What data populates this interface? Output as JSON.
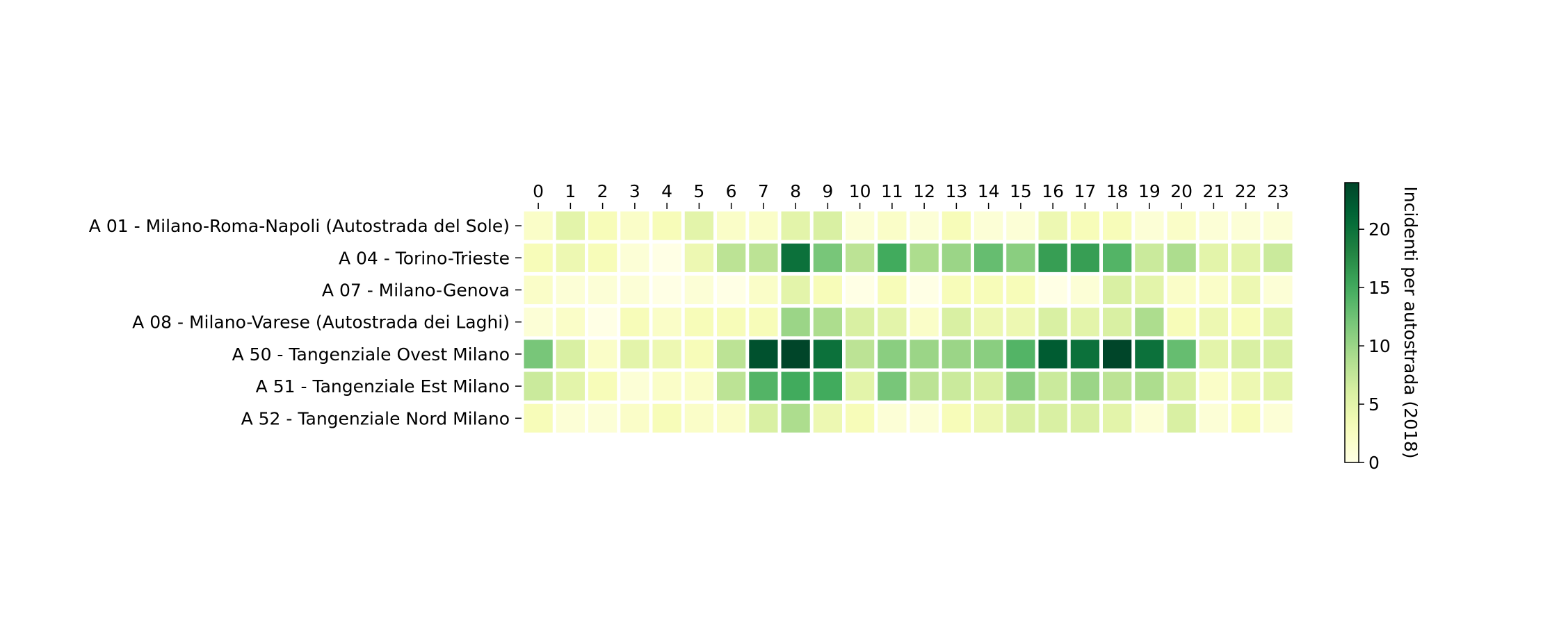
{
  "chart_data": {
    "type": "heatmap",
    "title": "",
    "xlabel": "",
    "ylabel": "",
    "x": [
      "0",
      "1",
      "2",
      "3",
      "4",
      "5",
      "6",
      "7",
      "8",
      "9",
      "10",
      "11",
      "12",
      "13",
      "14",
      "15",
      "16",
      "17",
      "18",
      "19",
      "20",
      "21",
      "22",
      "23"
    ],
    "rows": [
      "A 01 -  Milano-Roma-Napoli (Autostrada del Sole)",
      "A 04 -  Torino-Trieste",
      "A 07 -  Milano-Genova",
      "A 08 -  Milano-Varese (Autostrada dei Laghi)",
      "A 50 -  Tangenziale Ovest Milano",
      "A 51 -  Tangenziale Est Milano",
      "A 52 -  Tangenziale Nord Milano"
    ],
    "values": [
      [
        2,
        5,
        3,
        2,
        3,
        5,
        2,
        2,
        5,
        6,
        1,
        2,
        1,
        3,
        1,
        1,
        4,
        3,
        3,
        1,
        2,
        1,
        1,
        1
      ],
      [
        3,
        4,
        3,
        1,
        0,
        4,
        8,
        8,
        20,
        12,
        8,
        15,
        9,
        10,
        13,
        11,
        16,
        16,
        14,
        7,
        9,
        5,
        5,
        7
      ],
      [
        2,
        1,
        1,
        1,
        0,
        1,
        0,
        2,
        5,
        3,
        0,
        3,
        0,
        3,
        3,
        3,
        0,
        1,
        6,
        5,
        2,
        2,
        4,
        1
      ],
      [
        1,
        2,
        0,
        3,
        2,
        3,
        3,
        3,
        10,
        9,
        6,
        5,
        2,
        6,
        4,
        4,
        6,
        5,
        6,
        9,
        3,
        4,
        3,
        5
      ],
      [
        12,
        6,
        2,
        5,
        4,
        3,
        8,
        23,
        24,
        20,
        8,
        11,
        10,
        10,
        11,
        14,
        22,
        20,
        24,
        20,
        13,
        5,
        6,
        6
      ],
      [
        7,
        5,
        3,
        1,
        2,
        2,
        8,
        14,
        15,
        15,
        5,
        12,
        8,
        7,
        6,
        11,
        7,
        10,
        8,
        9,
        6,
        2,
        4,
        5
      ],
      [
        3,
        1,
        1,
        2,
        3,
        2,
        2,
        6,
        9,
        4,
        3,
        1,
        1,
        3,
        4,
        6,
        6,
        6,
        5,
        1,
        6,
        1,
        3,
        1
      ]
    ],
    "colorbar": {
      "label": "Incidenti per autostrada (2018)",
      "min": 0,
      "max": 24,
      "ticks": [
        0,
        5,
        10,
        15,
        20
      ],
      "colormap": "YlGn"
    },
    "grid": false,
    "legend": "none"
  }
}
